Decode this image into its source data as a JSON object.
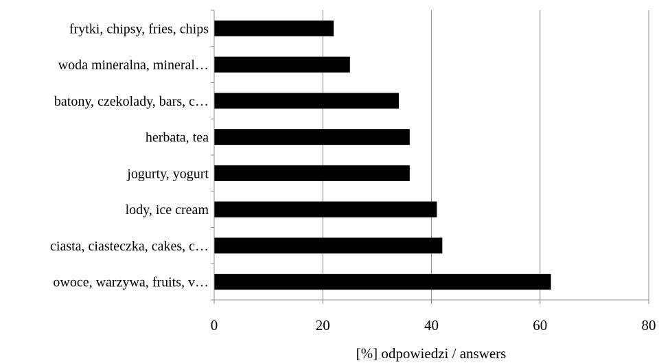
{
  "chart_data": {
    "type": "bar",
    "orientation": "horizontal",
    "title": "",
    "xlabel": "[%] odpowiedzi / answers",
    "ylabel": "",
    "xlim": [
      0,
      80
    ],
    "x_ticks": [
      "0",
      "20",
      "40",
      "60",
      "80"
    ],
    "grid": "vertical",
    "bar_color": "#000000",
    "categories": [
      "frytki, chipsy, fries, chips",
      "woda mineralna, mineral…",
      "batony, czekolady, bars, c…",
      "herbata, tea",
      "jogurty, yogurt",
      "lody, ice cream",
      "ciasta, ciasteczka, cakes, c…",
      "owoce, warzywa, fruits, v…"
    ],
    "values": [
      22,
      25,
      34,
      36,
      36,
      41,
      42,
      62
    ]
  }
}
